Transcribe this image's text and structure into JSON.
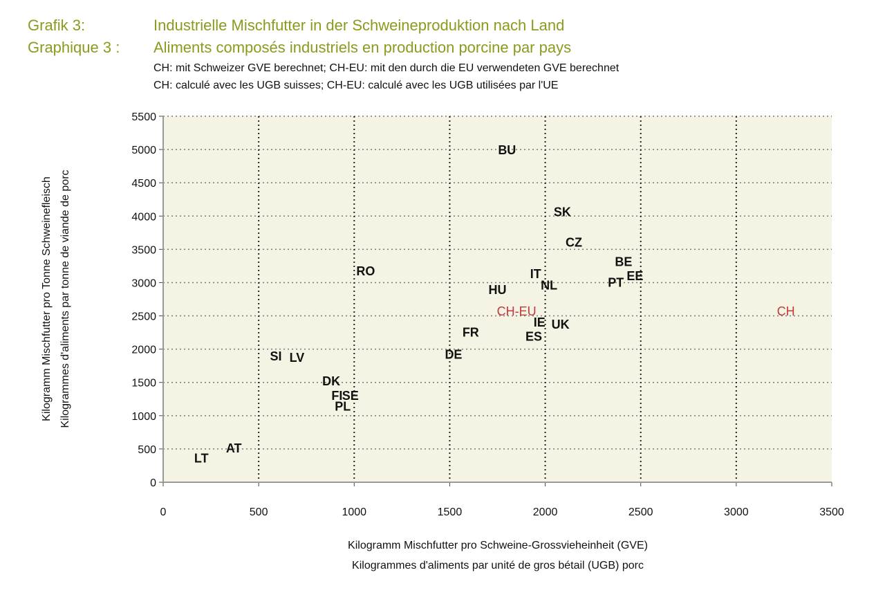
{
  "header": {
    "label_de": "Grafik 3:",
    "title_de": "Industrielle Mischfutter in der Schweineproduktion nach Land",
    "label_fr": "Graphique 3 :",
    "title_fr": "Aliments composés industriels en production porcine par pays",
    "note_de": "CH: mit Schweizer GVE berechnet; CH-EU: mit den durch die EU verwendeten GVE berechnet",
    "note_fr": "CH: calculé avec les UGB suisses; CH-EU: calculé avec les UGB utilisées par l'UE",
    "title_color": "#8c9a1e"
  },
  "chart_data": {
    "type": "scatter",
    "marker": "text-label",
    "xlabel": [
      "Kilogramm Mischfutter pro Schweine-Grossvieheinheit (GVE)",
      "Kilogrammes d'aliments par unité de gros bétail (UGB) porc"
    ],
    "ylabel": [
      "Kilogramm Mischfutter pro Tonne Schweinefleisch",
      "Kilogrammes d'aliments par tonne de viande de porc"
    ],
    "xlim": [
      0,
      3500
    ],
    "ylim": [
      0,
      5500
    ],
    "xticks": [
      "0",
      "500",
      "1000",
      "1500",
      "2000",
      "2500",
      "3000",
      "3500"
    ],
    "yticks": [
      "0",
      "500",
      "1000",
      "1500",
      "2000",
      "2500",
      "3000",
      "3500",
      "4000",
      "4500",
      "5000",
      "5500"
    ],
    "grid": true,
    "background": "#f5f3e3",
    "highlight_color": "#c0393b",
    "points": [
      {
        "label": "BU",
        "x": 1800,
        "y": 4990
      },
      {
        "label": "SK",
        "x": 2090,
        "y": 4060
      },
      {
        "label": "CZ",
        "x": 2150,
        "y": 3600
      },
      {
        "label": "BE",
        "x": 2410,
        "y": 3310
      },
      {
        "label": "EE",
        "x": 2470,
        "y": 3100
      },
      {
        "label": "PT",
        "x": 2370,
        "y": 3000
      },
      {
        "label": "IT",
        "x": 1950,
        "y": 3130
      },
      {
        "label": "NL",
        "x": 2020,
        "y": 2960
      },
      {
        "label": "HU",
        "x": 1750,
        "y": 2890
      },
      {
        "label": "RO",
        "x": 1060,
        "y": 3170
      },
      {
        "label": "CH-EU",
        "x": 1850,
        "y": 2570,
        "highlight": true
      },
      {
        "label": "CH",
        "x": 3260,
        "y": 2570,
        "highlight": true
      },
      {
        "label": "IE",
        "x": 1970,
        "y": 2400
      },
      {
        "label": "UK",
        "x": 2080,
        "y": 2370
      },
      {
        "label": "ES",
        "x": 1940,
        "y": 2190
      },
      {
        "label": "FR",
        "x": 1610,
        "y": 2250
      },
      {
        "label": "DE",
        "x": 1520,
        "y": 1920
      },
      {
        "label": "SI",
        "x": 590,
        "y": 1890
      },
      {
        "label": "LV",
        "x": 700,
        "y": 1870
      },
      {
        "label": "DK",
        "x": 880,
        "y": 1520
      },
      {
        "label": "FI",
        "x": 910,
        "y": 1300
      },
      {
        "label": "SE",
        "x": 980,
        "y": 1300
      },
      {
        "label": "PL",
        "x": 940,
        "y": 1140
      },
      {
        "label": "AT",
        "x": 370,
        "y": 510
      },
      {
        "label": "LT",
        "x": 200,
        "y": 360
      }
    ]
  }
}
